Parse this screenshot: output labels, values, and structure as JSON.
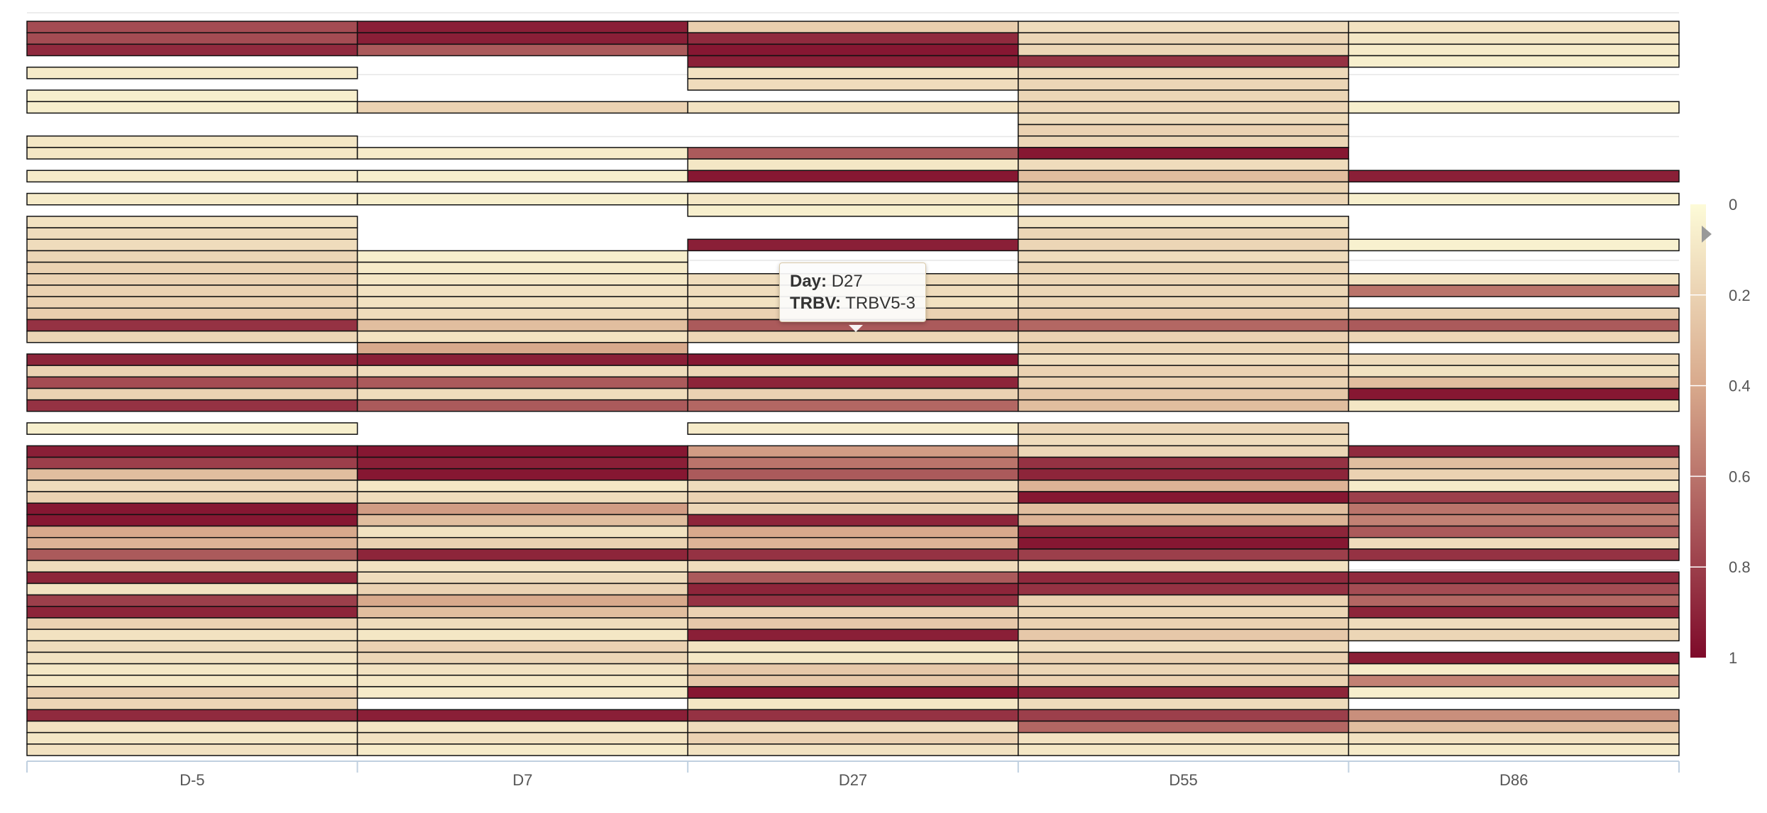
{
  "chart_data": {
    "type": "heatmap",
    "x_categories": [
      "D-5",
      "D7",
      "D27",
      "D55",
      "D86"
    ],
    "color_scale": {
      "min": 0,
      "max": 1,
      "stops": [
        "#fdfbd8",
        "#d8a98c",
        "#7e0a2a"
      ],
      "tick_labels": [
        "0",
        "0.2",
        "0.4",
        "0.6",
        "0.8",
        "1"
      ]
    },
    "row_count": 64,
    "values": [
      [
        0.75,
        0.92,
        0.22,
        0.15,
        0.12
      ],
      [
        0.75,
        0.92,
        0.88,
        0.18,
        0.1
      ],
      [
        0.88,
        0.7,
        0.95,
        0.18,
        0.08
      ],
      [
        null,
        null,
        0.92,
        0.85,
        0.06
      ],
      [
        0.08,
        null,
        0.12,
        0.16,
        null
      ],
      [
        null,
        null,
        0.15,
        0.18,
        null
      ],
      [
        0.06,
        null,
        null,
        0.18,
        null
      ],
      [
        0.06,
        0.2,
        0.12,
        0.18,
        0.06
      ],
      [
        null,
        null,
        null,
        0.15,
        null
      ],
      [
        null,
        null,
        null,
        0.2,
        null
      ],
      [
        0.1,
        null,
        null,
        0.18,
        null
      ],
      [
        0.1,
        0.08,
        0.7,
        0.95,
        null
      ],
      [
        null,
        null,
        0.1,
        0.15,
        null
      ],
      [
        0.08,
        0.06,
        0.95,
        0.3,
        0.92
      ],
      [
        null,
        null,
        null,
        0.18,
        null
      ],
      [
        0.08,
        0.06,
        0.1,
        0.18,
        0.06
      ],
      [
        null,
        null,
        0.06,
        null,
        null
      ],
      [
        0.12,
        null,
        null,
        0.12,
        null
      ],
      [
        0.15,
        null,
        null,
        0.18,
        null
      ],
      [
        0.15,
        null,
        0.92,
        0.18,
        0.05
      ],
      [
        0.18,
        0.06,
        null,
        0.15,
        null
      ],
      [
        0.2,
        0.08,
        null,
        0.18,
        null
      ],
      [
        0.2,
        0.1,
        0.15,
        0.18,
        0.12
      ],
      [
        0.2,
        0.12,
        0.15,
        0.18,
        0.6
      ],
      [
        0.2,
        0.12,
        0.12,
        0.18,
        null
      ],
      [
        0.22,
        0.15,
        0.2,
        0.22,
        0.2
      ],
      [
        0.85,
        0.3,
        0.7,
        0.65,
        0.7
      ],
      [
        0.18,
        0.12,
        0.18,
        0.2,
        0.18
      ],
      [
        null,
        0.4,
        null,
        0.18,
        null
      ],
      [
        0.9,
        0.92,
        0.95,
        0.15,
        0.15
      ],
      [
        0.2,
        0.15,
        0.18,
        0.2,
        0.12
      ],
      [
        0.75,
        0.7,
        0.9,
        0.2,
        0.3
      ],
      [
        0.2,
        0.15,
        0.2,
        0.25,
        0.95
      ],
      [
        0.85,
        0.7,
        0.65,
        0.3,
        0.1
      ],
      [
        null,
        null,
        null,
        null,
        null
      ],
      [
        0.06,
        null,
        0.08,
        0.18,
        null
      ],
      [
        null,
        null,
        null,
        0.15,
        null
      ],
      [
        0.92,
        0.95,
        0.45,
        0.18,
        0.88
      ],
      [
        0.8,
        0.92,
        0.6,
        0.85,
        0.3
      ],
      [
        0.3,
        0.95,
        0.7,
        0.9,
        0.2
      ],
      [
        0.15,
        0.1,
        0.15,
        0.35,
        0.08
      ],
      [
        0.2,
        0.15,
        0.2,
        0.95,
        0.8
      ],
      [
        0.95,
        0.45,
        0.18,
        0.3,
        0.6
      ],
      [
        0.95,
        0.3,
        0.9,
        0.35,
        0.55
      ],
      [
        0.4,
        0.12,
        0.4,
        0.9,
        0.7
      ],
      [
        0.35,
        0.2,
        0.35,
        0.95,
        0.15
      ],
      [
        0.7,
        0.9,
        0.85,
        0.8,
        0.85
      ],
      [
        0.15,
        0.12,
        0.15,
        0.12,
        null
      ],
      [
        0.9,
        0.15,
        0.7,
        0.88,
        0.88
      ],
      [
        0.12,
        0.2,
        0.9,
        0.85,
        0.75
      ],
      [
        0.8,
        0.4,
        0.85,
        0.2,
        0.65
      ],
      [
        0.9,
        0.3,
        0.2,
        0.18,
        0.9
      ],
      [
        0.2,
        0.15,
        0.25,
        0.2,
        0.15
      ],
      [
        0.12,
        0.1,
        0.92,
        0.25,
        0.18
      ],
      [
        0.15,
        0.2,
        0.12,
        0.15,
        null
      ],
      [
        0.12,
        0.18,
        0.1,
        0.2,
        0.92
      ],
      [
        0.1,
        0.12,
        0.25,
        0.18,
        0.08
      ],
      [
        0.1,
        0.1,
        0.25,
        0.2,
        0.55
      ],
      [
        0.2,
        0.08,
        0.95,
        0.9,
        0.06
      ],
      [
        0.18,
        null,
        0.1,
        0.15,
        null
      ],
      [
        0.88,
        0.92,
        0.85,
        0.8,
        0.5
      ],
      [
        0.12,
        0.1,
        0.15,
        0.65,
        0.3
      ],
      [
        0.1,
        0.12,
        0.2,
        0.12,
        0.12
      ],
      [
        0.12,
        0.08,
        0.12,
        0.1,
        0.08
      ]
    ]
  },
  "tooltip": {
    "day_label": "Day:",
    "day_value": "D27",
    "trbv_label": "TRBV:",
    "trbv_value": "TRBV5-3"
  }
}
